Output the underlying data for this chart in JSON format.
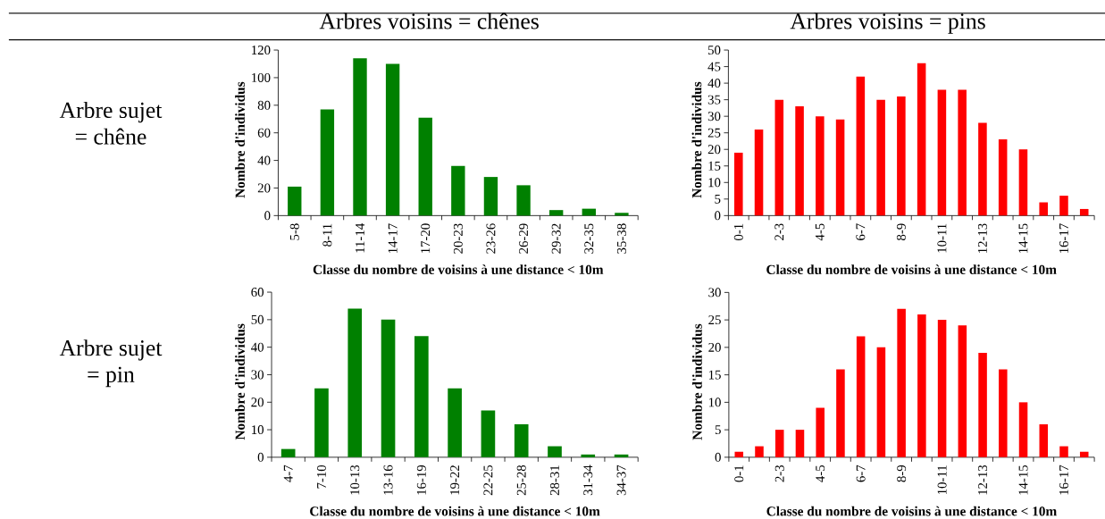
{
  "chart_data": [
    {
      "type": "bar",
      "title": "Arbres voisins = chênes",
      "annotations": [
        "Arbre sujet = chêne"
      ],
      "xlabel": "Classe du nombre de voisins à une distance < 10m",
      "ylabel": "Nombre d'individus",
      "categories": [
        "5-8",
        "8-11",
        "11-14",
        "14-17",
        "17-20",
        "20-23",
        "23-26",
        "26-29",
        "29-32",
        "32-35",
        "35-38"
      ],
      "values": [
        21,
        77,
        114,
        110,
        71,
        36,
        28,
        22,
        4,
        5,
        2
      ],
      "color": "#008000",
      "ylim": [
        0,
        120
      ],
      "yticks": [
        0,
        20,
        40,
        60,
        80,
        100,
        120
      ]
    },
    {
      "type": "bar",
      "title": "Arbres voisins = pins",
      "xlabel": "Classe du nombre de voisins à une distance < 10m",
      "ylabel": "Nombre d'individus",
      "categories": [
        "0-1",
        null,
        "2-3",
        null,
        "4-5",
        null,
        "6-7",
        null,
        "8-9",
        null,
        "10-11",
        null,
        "12-13",
        null,
        "14-15",
        null,
        "16-17",
        null
      ],
      "values": [
        19,
        26,
        35,
        33,
        30,
        29,
        42,
        35,
        36,
        46,
        38,
        38,
        28,
        23,
        20,
        4,
        6,
        2
      ],
      "color": "#ff0000",
      "ylim": [
        0,
        50
      ],
      "yticks": [
        0,
        5,
        10,
        15,
        20,
        25,
        30,
        35,
        40,
        45,
        50
      ]
    },
    {
      "type": "bar",
      "annotations": [
        "Arbre sujet = pin"
      ],
      "xlabel": "Classe du nombre de voisins à une distance < 10m",
      "ylabel": "Nombre d'individus",
      "categories": [
        "4-7",
        "7-10",
        "10-13",
        "13-16",
        "16-19",
        "19-22",
        "22-25",
        "25-28",
        "28-31",
        "31-34",
        "34-37"
      ],
      "values": [
        3,
        25,
        54,
        50,
        44,
        25,
        17,
        12,
        4,
        1,
        1
      ],
      "color": "#008000",
      "ylim": [
        0,
        60
      ],
      "yticks": [
        0,
        10,
        20,
        30,
        40,
        50,
        60
      ]
    },
    {
      "type": "bar",
      "xlabel": "Classe du nombre de voisins à une distance < 10m",
      "ylabel": "Nombre d'individus",
      "categories": [
        "0-1",
        null,
        "2-3",
        null,
        "4-5",
        null,
        "6-7",
        null,
        "8-9",
        null,
        "10-11",
        null,
        "12-13",
        null,
        "14-15",
        null,
        "16-17",
        null
      ],
      "values": [
        1,
        2,
        5,
        5,
        9,
        16,
        22,
        20,
        27,
        26,
        25,
        24,
        19,
        16,
        10,
        6,
        2,
        1
      ],
      "color": "#ff0000",
      "ylim": [
        0,
        30
      ],
      "yticks": [
        0,
        5,
        10,
        15,
        20,
        25,
        30
      ]
    }
  ]
}
